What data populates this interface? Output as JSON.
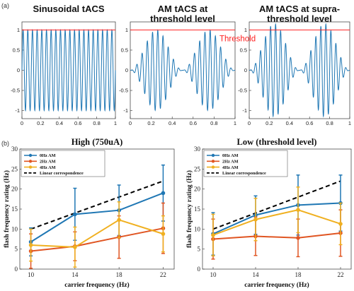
{
  "panel_labels": {
    "a": "(a)",
    "b": "(b)"
  },
  "colors": {
    "waveform": "#1f77b4",
    "threshold": "#ff2020",
    "0Hz AM": "#1f77b4",
    "2Hz AM": "#e05522",
    "4Hz AM": "#f0b020",
    "Linear correspondence": "#000000"
  },
  "chart_data": [
    {
      "type": "line",
      "panel": "a-1",
      "title": "Sinusoidal tACS",
      "xlim": [
        0,
        1
      ],
      "ylim": [
        -1.2,
        1.2
      ],
      "xticks": [
        "0",
        "0.2",
        "0.4",
        "0.6",
        "0.8",
        "1"
      ],
      "yticks": [
        "-1",
        "-0.5",
        "0",
        "0.5",
        "1"
      ],
      "threshold": 1,
      "waveform": {
        "carrier_hz": 20,
        "envelope": "constant",
        "amplitude": 1
      }
    },
    {
      "type": "line",
      "panel": "a-2",
      "title": "AM tACS at threshold level",
      "annotation": "Threshold",
      "xlim": [
        0,
        1
      ],
      "ylim": [
        -1.2,
        1.2
      ],
      "xticks": [
        "0",
        "0.2",
        "0.4",
        "0.6",
        "0.8",
        "1"
      ],
      "yticks": [
        "-1",
        "-0.5",
        "0",
        "0.5",
        "1"
      ],
      "threshold": 1,
      "waveform": {
        "carrier_hz": 20,
        "envelope": "2Hz AM",
        "modulation_hz": 2,
        "amplitude": 1
      }
    },
    {
      "type": "line",
      "panel": "a-3",
      "title": "AM tACS at supra-threshold level",
      "xlim": [
        0,
        1
      ],
      "ylim": [
        -1.2,
        1.2
      ],
      "xticks": [
        "0",
        "0.2",
        "0.4",
        "0.6",
        "0.8",
        "1"
      ],
      "yticks": [
        "-1",
        "-0.5",
        "0",
        "0.5",
        "1"
      ],
      "threshold": 1,
      "waveform": {
        "carrier_hz": 20,
        "envelope": "2Hz AM",
        "modulation_hz": 2,
        "amplitude": 1.15
      }
    },
    {
      "type": "line",
      "panel": "b-1",
      "title": "High (750uA)",
      "xlabel": "carrier frequency (Hz)",
      "ylabel": "flash frequency rating (Hz)",
      "categories": [
        "10",
        "14",
        "18",
        "22"
      ],
      "x": [
        10,
        14,
        18,
        22
      ],
      "xlim": [
        9,
        23
      ],
      "ylim": [
        0,
        30
      ],
      "yticks": [
        "0",
        "5",
        "10",
        "15",
        "20",
        "25",
        "30"
      ],
      "legend": "top-left",
      "series": [
        {
          "name": "0Hz AM",
          "values": [
            6.8,
            13.7,
            14.7,
            19
          ],
          "err": [
            3.5,
            6.5,
            6.3,
            7
          ]
        },
        {
          "name": "2Hz AM",
          "values": [
            4.5,
            5.7,
            8,
            10.2
          ],
          "err": [
            4.3,
            3.6,
            5.3,
            6.3
          ]
        },
        {
          "name": "4Hz AM",
          "values": [
            6,
            5.5,
            12.3,
            8.8
          ],
          "err": [
            4,
            5,
            4.5,
            4.5
          ]
        },
        {
          "name": "Linear correspondence",
          "values": [
            10,
            14,
            18,
            22
          ],
          "style": "dashed"
        }
      ]
    },
    {
      "type": "line",
      "panel": "b-2",
      "title": "Low (threshold level)",
      "xlabel": "carrier frequency (Hz)",
      "ylabel": "flash frequency rating (Hz)",
      "categories": [
        "10",
        "14",
        "18",
        "22"
      ],
      "x": [
        10,
        14,
        18,
        22
      ],
      "xlim": [
        9,
        23
      ],
      "ylim": [
        0,
        30
      ],
      "yticks": [
        "0",
        "5",
        "10",
        "15",
        "20",
        "25",
        "30"
      ],
      "legend": "top-left",
      "series": [
        {
          "name": "0Hz AM",
          "values": [
            8.8,
            13.5,
            16,
            16.5
          ],
          "err": [
            5.3,
            4.8,
            7.5,
            7
          ]
        },
        {
          "name": "2Hz AM",
          "values": [
            7.5,
            8.2,
            7.8,
            9
          ],
          "err": [
            5,
            4.8,
            4.7,
            5.8
          ]
        },
        {
          "name": "4Hz AM",
          "values": [
            8.5,
            12.4,
            14.8,
            11.3
          ],
          "err": [
            5.2,
            5.3,
            5.7,
            5.2
          ]
        },
        {
          "name": "Linear correspondence",
          "values": [
            10,
            14,
            18,
            22
          ],
          "style": "dashed"
        }
      ]
    }
  ]
}
